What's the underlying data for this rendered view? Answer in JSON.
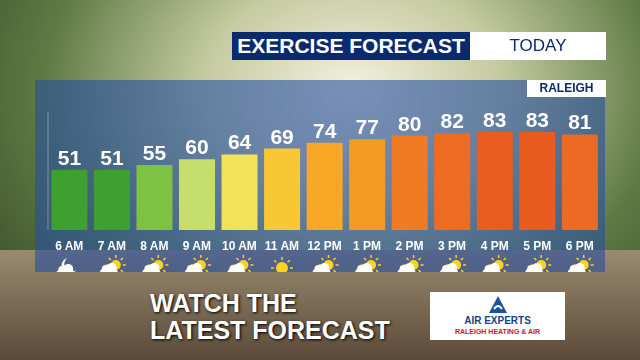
{
  "chart_data": {
    "type": "bar",
    "title": "EXERCISE FORECAST",
    "subtitle": "TODAY",
    "annotations": [
      "RALEIGH",
      "WATCH THE\nLATEST FORECAST",
      "AIR EXPERTS",
      "RALEIGH HEATING & AIR"
    ],
    "categories": [
      "6 AM",
      "7 AM",
      "8 AM",
      "9 AM",
      "10 AM",
      "11 AM",
      "12 PM",
      "1 PM",
      "2 PM",
      "3 PM",
      "4 PM",
      "5 PM",
      "6 PM"
    ],
    "values": [
      51,
      51,
      55,
      60,
      64,
      69,
      74,
      77,
      80,
      82,
      83,
      83,
      81
    ],
    "colors": [
      "#3ea12f",
      "#3ea12f",
      "#7dc242",
      "#c6df6c",
      "#f2e25a",
      "#f7c833",
      "#f6a826",
      "#f59a23",
      "#f07b22",
      "#ee6c22",
      "#ea5d20",
      "#e95c20",
      "#ec6a24"
    ],
    "ylim": [
      0,
      100
    ],
    "data_labels": true,
    "tick_labels": "x",
    "grid": false
  }
}
